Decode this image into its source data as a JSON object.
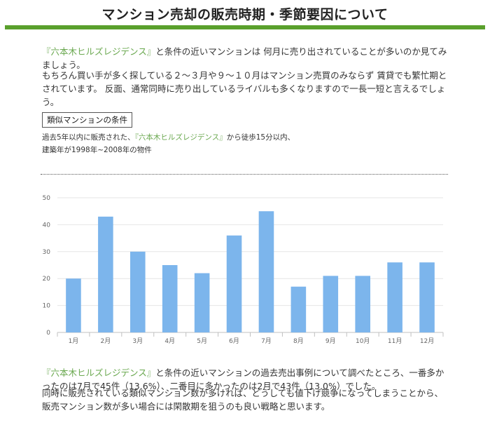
{
  "header": {
    "title": "マンション売却の販売時期・季節要因について"
  },
  "intro": {
    "p1_property": "『六本木ヒルズレジデンス』",
    "p1_rest": "と条件の近いマンションは 何月に売り出されていることが多いのか見てみましょう。",
    "p2": "もちろん買い手が多く探している２～３月や９～１０月はマンション売買のみならず 賃貸でも繁忙期とされています。 反面、通常同時に売り出しているライバルも多くなりますので一長一短と言えるでしょう。"
  },
  "conditions": {
    "label": "類似マンションの条件",
    "line1_pre": "過去5年以内に販売された、",
    "line1_property": "『六本木ヒルズレジデンス』",
    "line1_post": "から徒歩15分以内、",
    "line2": "建築年が1998年~2008年の物件"
  },
  "chart_data": {
    "type": "bar",
    "categories": [
      "1月",
      "2月",
      "3月",
      "4月",
      "5月",
      "6月",
      "7月",
      "8月",
      "9月",
      "10月",
      "11月",
      "12月"
    ],
    "values": [
      20,
      43,
      30,
      25,
      22,
      36,
      45,
      17,
      21,
      21,
      26,
      26
    ],
    "ylim": [
      0,
      50
    ],
    "yticks": [
      0,
      10,
      20,
      30,
      40,
      50
    ],
    "bar_color": "#7cb5ec",
    "grid": true
  },
  "summary": {
    "p3_property": "『六本木ヒルズレジデンス』",
    "p3_rest": "と条件の近いマンションの過去売出事例について調べたところ、一番多かったのは7月で45件（13.6%）、二番目に多かったのは2月で43件（13.0%）でした。",
    "p4": "同時に販売されている類似マンション数が多ければ、どうしても値下げ競争になってしまうことから、販売マンション数が多い場合には閑散期を狙うのも良い戦略と思います。"
  },
  "colors": {
    "accent": "#5aa02c",
    "highlight": "#6aa84f"
  }
}
